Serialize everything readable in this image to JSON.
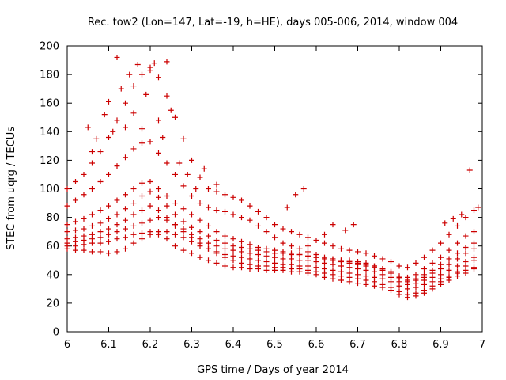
{
  "chart_data": {
    "type": "scatter",
    "title": "Rec. tow2 (Lon=147, Lat=-19, h=HE), days 005-006, 2014, window 004",
    "xlabel": "GPS time / Days of year 2014",
    "ylabel": "STEC from uqrg / TECUs",
    "xlim": [
      6,
      7
    ],
    "ylim": [
      0,
      200
    ],
    "xticks": [
      "6",
      "6.1",
      "6.2",
      "6.3",
      "6.4",
      "6.5",
      "6.6",
      "6.7",
      "6.8",
      "6.9",
      "7"
    ],
    "yticks": [
      "0",
      "20",
      "40",
      "60",
      "80",
      "100",
      "120",
      "140",
      "160",
      "180",
      "200"
    ],
    "marker": "plus",
    "color": "#cc0000",
    "series": [
      {
        "name": "s1",
        "x": [
          6.0,
          6.02,
          6.04,
          6.06,
          6.08,
          6.1,
          6.12,
          6.14,
          6.16,
          6.18,
          6.2,
          6.22,
          6.24,
          6.26,
          6.28,
          6.3,
          6.32,
          6.34,
          6.36,
          6.38,
          6.4,
          6.42,
          6.44,
          6.46,
          6.48,
          6.5,
          6.52,
          6.54,
          6.56,
          6.58,
          6.6,
          6.62,
          6.64,
          6.66,
          6.68,
          6.7,
          6.72,
          6.74,
          6.76,
          6.78,
          6.8,
          6.82,
          6.84,
          6.86,
          6.88,
          6.9,
          6.92,
          6.94,
          6.96,
          6.98
        ],
        "y": [
          60,
          60,
          61,
          62,
          62,
          63,
          65,
          66,
          68,
          69,
          70,
          70,
          70,
          68,
          66,
          63,
          60,
          58,
          56,
          54,
          53,
          52,
          51,
          50,
          49,
          48,
          47,
          47,
          46,
          46,
          45,
          44,
          43,
          42,
          41,
          40,
          39,
          38,
          37,
          35,
          32,
          30,
          31,
          33,
          35,
          37,
          39,
          41,
          43,
          45
        ]
      },
      {
        "name": "s2",
        "x": [
          6.0,
          6.02,
          6.04,
          6.06,
          6.08,
          6.1,
          6.12,
          6.14,
          6.16,
          6.18,
          6.2,
          6.22,
          6.24,
          6.26,
          6.28,
          6.3,
          6.32,
          6.34,
          6.36,
          6.38,
          6.4,
          6.42,
          6.44,
          6.46,
          6.48,
          6.5,
          6.52,
          6.54,
          6.56,
          6.58,
          6.6,
          6.62,
          6.64,
          6.66,
          6.68,
          6.7,
          6.72,
          6.74,
          6.76,
          6.78,
          6.8,
          6.82,
          6.84,
          6.86,
          6.88,
          6.9,
          6.92,
          6.94,
          6.96,
          6.98
        ],
        "y": [
          58,
          57,
          57,
          56,
          56,
          55,
          56,
          58,
          62,
          65,
          68,
          68,
          65,
          60,
          57,
          55,
          52,
          50,
          48,
          46,
          45,
          45,
          44,
          44,
          43,
          43,
          43,
          42,
          42,
          41,
          40,
          38,
          37,
          36,
          35,
          34,
          33,
          32,
          31,
          29,
          26,
          24,
          25,
          27,
          30,
          33,
          36,
          39,
          41,
          44
        ]
      },
      {
        "name": "s3",
        "x": [
          6.0,
          6.02,
          6.04,
          6.06,
          6.08,
          6.1,
          6.12,
          6.14,
          6.16,
          6.18,
          6.2,
          6.22,
          6.24,
          6.26,
          6.28,
          6.3,
          6.32,
          6.34,
          6.36,
          6.38,
          6.4,
          6.42,
          6.44,
          6.46,
          6.48,
          6.5,
          6.52,
          6.54,
          6.56,
          6.58,
          6.6,
          6.62,
          6.64,
          6.66,
          6.68,
          6.7,
          6.72,
          6.74,
          6.76,
          6.78,
          6.8,
          6.82,
          6.84,
          6.86,
          6.88,
          6.9,
          6.92,
          6.94,
          6.96,
          6.98
        ],
        "y": [
          65,
          66,
          67,
          68,
          70,
          72,
          75,
          78,
          82,
          85,
          88,
          85,
          80,
          75,
          72,
          68,
          65,
          62,
          60,
          58,
          57,
          56,
          55,
          54,
          53,
          52,
          51,
          51,
          50,
          50,
          49,
          48,
          47,
          46,
          45,
          44,
          43,
          42,
          40,
          38,
          35,
          33,
          34,
          36,
          38,
          40,
          43,
          46,
          49,
          52
        ]
      },
      {
        "name": "s4",
        "x": [
          6.0,
          6.02,
          6.04,
          6.06,
          6.08,
          6.1,
          6.12,
          6.14,
          6.16,
          6.18,
          6.2,
          6.22,
          6.24,
          6.26,
          6.28,
          6.3,
          6.32,
          6.34,
          6.36,
          6.38,
          6.4,
          6.42,
          6.44,
          6.46,
          6.48,
          6.5,
          6.52,
          6.54,
          6.56,
          6.58,
          6.6,
          6.62,
          6.64,
          6.66,
          6.68,
          6.7,
          6.72,
          6.74,
          6.76,
          6.78,
          6.8,
          6.82,
          6.84,
          6.86,
          6.88,
          6.9,
          6.92,
          6.94,
          6.96,
          6.98
        ],
        "y": [
          75,
          77,
          79,
          82,
          85,
          88,
          92,
          96,
          100,
          104,
          105,
          100,
          95,
          90,
          86,
          82,
          78,
          74,
          70,
          67,
          65,
          63,
          61,
          59,
          58,
          57,
          56,
          55,
          54,
          53,
          52,
          51,
          50,
          50,
          49,
          48,
          47,
          46,
          44,
          42,
          38,
          36,
          37,
          40,
          43,
          47,
          51,
          55,
          59,
          62
        ]
      },
      {
        "name": "s5",
        "x": [
          6.0,
          6.02,
          6.04,
          6.06,
          6.08,
          6.1,
          6.12,
          6.14,
          6.16,
          6.18,
          6.2,
          6.22,
          6.24,
          6.26,
          6.28,
          6.3,
          6.32,
          6.34,
          6.36,
          6.38,
          6.4,
          6.42,
          6.44,
          6.46,
          6.48,
          6.5,
          6.52,
          6.54,
          6.56,
          6.58,
          6.6,
          6.62,
          6.64,
          6.66,
          6.68,
          6.7,
          6.72,
          6.74,
          6.76,
          6.78,
          6.8,
          6.82,
          6.84,
          6.86,
          6.88,
          6.9,
          6.92,
          6.94,
          6.96,
          6.98
        ],
        "y": [
          88,
          92,
          96,
          100,
          105,
          110,
          116,
          122,
          128,
          132,
          133,
          125,
          118,
          110,
          102,
          95,
          90,
          87,
          85,
          84,
          82,
          80,
          78,
          74,
          70,
          66,
          62,
          60,
          58,
          56,
          54,
          52,
          51,
          50,
          50,
          49,
          48,
          46,
          44,
          42,
          39,
          38,
          40,
          44,
          48,
          52,
          57,
          62,
          67,
          70
        ]
      },
      {
        "name": "s6",
        "x": [
          6.0,
          6.02,
          6.04,
          6.06,
          6.08,
          6.1,
          6.12,
          6.14,
          6.16,
          6.18,
          6.2,
          6.22,
          6.24,
          6.26,
          6.28,
          6.3,
          6.32,
          6.34,
          6.36,
          6.38,
          6.4,
          6.42,
          6.44,
          6.46,
          6.48,
          6.5,
          6.52,
          6.54,
          6.56,
          6.58,
          6.6,
          6.62,
          6.64,
          6.66,
          6.68,
          6.7,
          6.72,
          6.74,
          6.76,
          6.78,
          6.8,
          6.82,
          6.84,
          6.86,
          6.88,
          6.9,
          6.92,
          6.94,
          6.96,
          6.98
        ],
        "y": [
          100,
          105,
          110,
          118,
          126,
          136,
          148,
          160,
          172,
          180,
          185,
          178,
          165,
          150,
          135,
          120,
          108,
          100,
          98,
          96,
          94,
          92,
          88,
          84,
          80,
          75,
          72,
          70,
          68,
          66,
          64,
          62,
          60,
          58,
          57,
          56,
          55,
          53,
          51,
          49,
          46,
          45,
          48,
          52,
          57,
          62,
          68,
          74,
          80,
          85
        ]
      },
      {
        "name": "s7",
        "x": [
          6.0,
          6.02,
          6.04,
          6.06,
          6.08,
          6.1,
          6.12,
          6.14,
          6.16,
          6.18,
          6.2,
          6.22,
          6.24,
          6.26,
          6.28,
          6.3,
          6.32,
          6.34,
          6.36,
          6.38,
          6.4,
          6.42,
          6.44,
          6.46,
          6.48,
          6.5,
          6.52,
          6.54,
          6.56,
          6.58,
          6.6,
          6.62,
          6.64,
          6.66,
          6.68,
          6.7,
          6.72,
          6.74,
          6.76,
          6.78,
          6.8,
          6.82,
          6.84,
          6.86,
          6.88,
          6.9,
          6.92,
          6.94,
          6.96,
          6.98
        ],
        "y": [
          62,
          63,
          64,
          65,
          66,
          68,
          70,
          72,
          74,
          76,
          78,
          80,
          78,
          74,
          70,
          66,
          62,
          58,
          55,
          52,
          50,
          48,
          47,
          46,
          46,
          45,
          45,
          44,
          44,
          43,
          42,
          41,
          40,
          39,
          38,
          37,
          36,
          35,
          33,
          31,
          28,
          26,
          27,
          29,
          32,
          35,
          38,
          42,
          46,
          50
        ]
      },
      {
        "name": "s8",
        "x": [
          6.0,
          6.02,
          6.04,
          6.06,
          6.08,
          6.1,
          6.12,
          6.14,
          6.16,
          6.18,
          6.2,
          6.22,
          6.24,
          6.26,
          6.28,
          6.3,
          6.32,
          6.34,
          6.36,
          6.38,
          6.4,
          6.42,
          6.44,
          6.46,
          6.48,
          6.5,
          6.52,
          6.54,
          6.56,
          6.58,
          6.6,
          6.62,
          6.64,
          6.66,
          6.68,
          6.7,
          6.72,
          6.74,
          6.76,
          6.78,
          6.8,
          6.82,
          6.84,
          6.86,
          6.88,
          6.9,
          6.92,
          6.94,
          6.96,
          6.98
        ],
        "y": [
          70,
          71,
          72,
          74,
          76,
          79,
          82,
          86,
          90,
          95,
          98,
          94,
          88,
          82,
          77,
          73,
          70,
          67,
          64,
          62,
          60,
          59,
          58,
          57,
          56,
          55,
          55,
          54,
          54,
          53,
          52,
          51,
          50,
          49,
          48,
          47,
          46,
          45,
          43,
          41,
          37,
          35,
          36,
          38,
          41,
          44,
          47,
          51,
          55,
          58
        ]
      }
    ],
    "scattered": {
      "x": [
        6.12,
        6.15,
        6.17,
        6.2,
        6.21,
        6.24,
        6.13,
        6.19,
        6.22,
        6.1,
        6.16,
        6.18,
        6.23,
        6.25,
        6.09,
        6.11,
        6.14,
        6.07,
        6.05,
        6.06,
        6.33,
        6.36,
        6.29,
        6.31,
        6.27,
        6.57,
        6.55,
        6.53,
        6.58,
        6.64,
        6.67,
        6.69,
        6.62,
        6.97,
        6.99,
        6.95,
        6.93,
        6.91
      ],
      "y": [
        192,
        180,
        187,
        183,
        188,
        189,
        170,
        166,
        148,
        161,
        153,
        142,
        136,
        155,
        152,
        140,
        143,
        135,
        143,
        126,
        114,
        103,
        110,
        100,
        118,
        100,
        96,
        87,
        60,
        75,
        71,
        75,
        68,
        113,
        87,
        82,
        79,
        76
      ]
    }
  }
}
